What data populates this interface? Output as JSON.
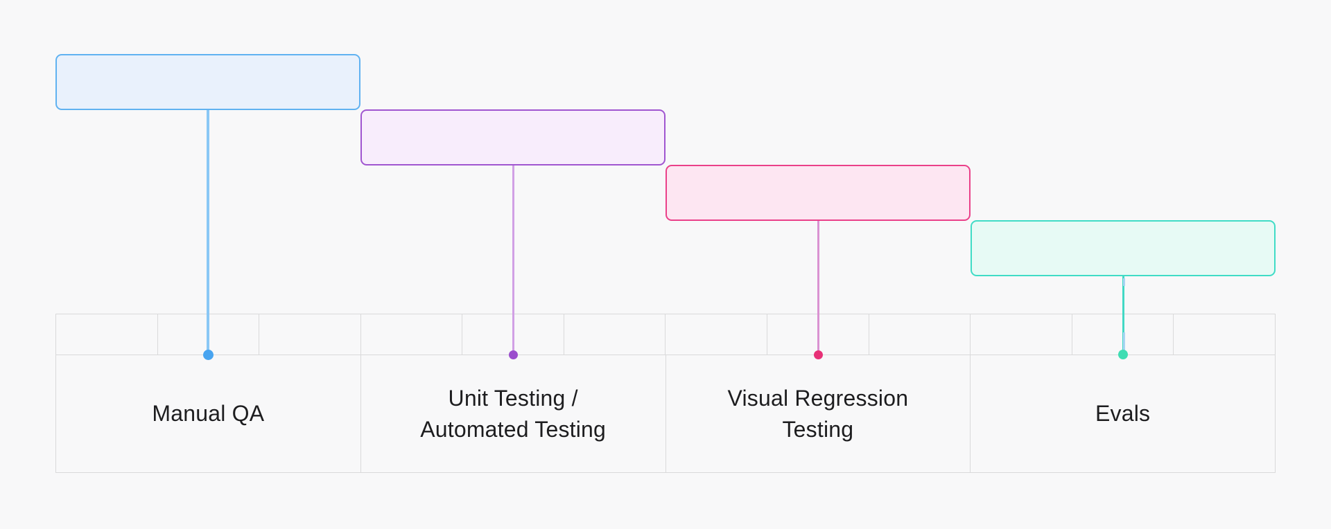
{
  "page": {
    "background": "#f8f8f9",
    "grid_color": "#d9d9da",
    "text_color": "#1d1d1f"
  },
  "diagram": {
    "type": "staircase-timeline",
    "ticks_per_phase": 3,
    "line_overlap_color": "#a9d4f3",
    "phases": [
      {
        "label": "Manual QA",
        "box_fill": "#e9f1fc",
        "box_border": "#60b2f1",
        "line_color": "#8ac7f5",
        "dot_color": "#48a4f0"
      },
      {
        "label": "Unit Testing /\nAutomated Testing",
        "box_fill": "#f8edfc",
        "box_border": "#a055d0",
        "line_color": "#d1a0e5",
        "dot_color": "#9b4ecd"
      },
      {
        "label": "Visual Regression\nTesting",
        "box_fill": "#fde6f2",
        "box_border": "#ea4089",
        "line_color": "#da92d2",
        "dot_color": "#e73177"
      },
      {
        "label": "Evals",
        "box_fill": "#e7faf5",
        "box_border": "#3fdcc6",
        "line_color": "#43d8c5",
        "dot_color": "#3fddb3"
      }
    ]
  }
}
